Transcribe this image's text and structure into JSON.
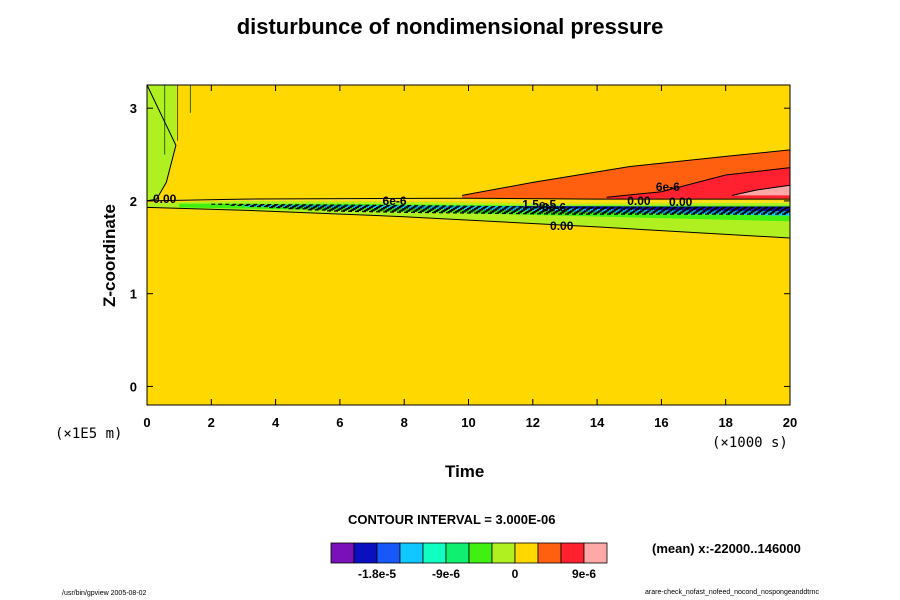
{
  "chart_data": {
    "type": "contour",
    "title": "disturbunce of nondimensional pressure",
    "xlabel": "Time",
    "ylabel": "Z-coordinate",
    "x_unit_label": "(×1000 s)",
    "y_unit_label": "(×1E5 m)",
    "xlim": [
      0,
      20
    ],
    "ylim": [
      -0.2,
      3.25
    ],
    "xticks": [
      0,
      2,
      4,
      6,
      8,
      10,
      12,
      14,
      16,
      18,
      20
    ],
    "yticks": [
      0,
      1,
      2,
      3
    ],
    "contour_labels": [
      "0.00",
      "6e-6",
      "1.5e-5",
      "-6e-6",
      "0.00",
      "0.00",
      "6e-6",
      "0.00"
    ],
    "contour_interval_text": "CONTOUR INTERVAL = 3.000E-06",
    "colorbar": {
      "levels_text": [
        "-1.8e-5",
        "-9e-6",
        "0",
        "9e-6"
      ],
      "colors": [
        "#7a10b8",
        "#0a10c0",
        "#1858f8",
        "#10c8ff",
        "#10ffc0",
        "#10f070",
        "#40f010",
        "#b0f020",
        "#ffd800",
        "#ff6010",
        "#ff2030",
        "#ffa8a8"
      ]
    },
    "mean_text": "(mean) x:-22000..146000"
  },
  "colors": {
    "background_field": "#ffd800",
    "positive_1": "#ff6010",
    "positive_2": "#ff2030",
    "positive_3": "#ffa8a8",
    "negative_1": "#b0f020",
    "negative_2": "#40f010",
    "negative_3": "#10c8ff",
    "negative_4": "#0a10c0"
  },
  "footer": {
    "left": "/usr/bin/gpview 2005-08-02",
    "right": "arare-check_nofast_nofeed_nocond_nospongeanddtrnc"
  }
}
